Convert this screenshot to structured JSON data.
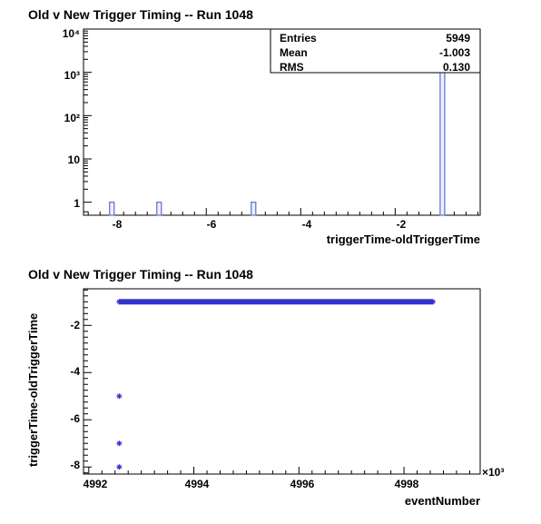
{
  "chart_data": [
    {
      "type": "bar",
      "title": "Old v New Trigger Timing -- Run 1048",
      "xlabel": "triggerTime-oldTriggerTime",
      "ylabel": "",
      "xlim": [
        -8.6,
        -0.2
      ],
      "ylim": [
        0.5,
        10000
      ],
      "yscale": "log",
      "x_ticks": [
        "-8",
        "-6",
        "-4",
        "-2"
      ],
      "y_ticks": [
        "1",
        "10",
        "10²",
        "10³",
        "10⁴"
      ],
      "bars": [
        {
          "x": -8,
          "value": 1
        },
        {
          "x": -7,
          "value": 1
        },
        {
          "x": -5,
          "value": 1
        },
        {
          "x": -1,
          "value": 5946
        }
      ],
      "stats": [
        {
          "label": "Entries",
          "value": "5949"
        },
        {
          "label": "Mean",
          "value": "-1.003"
        },
        {
          "label": "RMS",
          "value": "0.130"
        }
      ],
      "grid": false
    },
    {
      "type": "scatter",
      "title": "Old v New Trigger Timing -- Run 1048",
      "xlabel": "eventNumber",
      "ylabel": "triggerTime-oldTriggerTime",
      "x_multiplier": "×10³",
      "xlim": [
        4991.9,
        4999.45
      ],
      "ylim": [
        -8.3,
        -0.45
      ],
      "x_ticks": [
        "4992",
        "4994",
        "4996",
        "4998"
      ],
      "y_ticks": [
        "-2",
        "-4",
        "-6",
        "-8"
      ],
      "points": [
        {
          "x": 4992.58,
          "y": -5
        },
        {
          "x": 4992.58,
          "y": -7
        },
        {
          "x": 4992.58,
          "y": -8
        }
      ],
      "dense_band": {
        "x_start": 4992.58,
        "x_end": 4998.55,
        "y": -1
      },
      "grid": false
    }
  ],
  "colors": {
    "marker": "#3333cc",
    "bar": "#6a78d0"
  }
}
